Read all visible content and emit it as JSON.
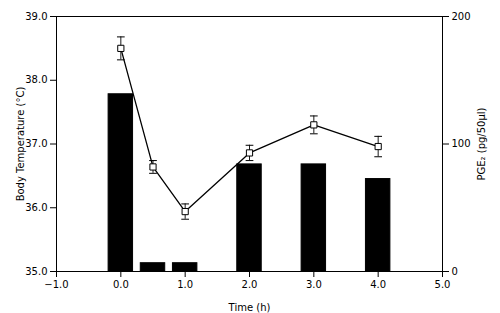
{
  "chart_data": {
    "type": "bar",
    "x": [
      0,
      0.5,
      1,
      2,
      3,
      4
    ],
    "xlabel": "Time (h)",
    "ylabel": "Body Temperature (°C)",
    "y2label": "PGE₂ (pg/50μl)",
    "xlim": [
      -1,
      5
    ],
    "xticks": [
      -1,
      0,
      1,
      2,
      3,
      4,
      5
    ],
    "ylim": [
      35,
      39
    ],
    "yticks": [
      35,
      36,
      37,
      38,
      39
    ],
    "y2lim": [
      0,
      200
    ],
    "y2ticks": [
      0,
      100,
      200
    ],
    "series": [
      {
        "type": "bar",
        "color": "#000000",
        "values": [
          37.78,
          35.13,
          35.13,
          36.68,
          36.68,
          36.45
        ]
      },
      {
        "type": "line",
        "axis": "y2",
        "color": "#000000",
        "marker": "square",
        "values": [
          175,
          82,
          47,
          93,
          115,
          98
        ],
        "errors": [
          9,
          5,
          6,
          6,
          7,
          8
        ]
      }
    ]
  }
}
